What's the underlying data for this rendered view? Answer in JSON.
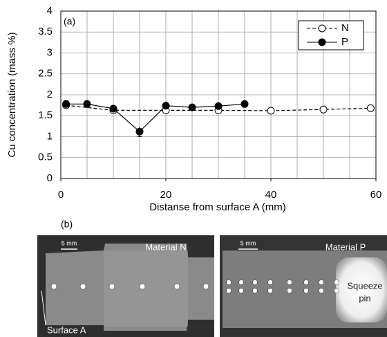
{
  "chart_data": {
    "type": "line",
    "panel_label": "(a)",
    "x_label": "Distanse from surface A (mm)",
    "y_label": "Cu concentration (mass %)",
    "xlim": [
      0,
      60
    ],
    "xticks": [
      0,
      20,
      40,
      60
    ],
    "x_grid": [
      5,
      10,
      15,
      20,
      25,
      30,
      35,
      40,
      45,
      50,
      55
    ],
    "ylim": [
      0,
      4
    ],
    "yticks": [
      0,
      0.5,
      1,
      1.5,
      2,
      2.5,
      3,
      3.5,
      4
    ],
    "grid": true,
    "legend": "upper right",
    "series": [
      {
        "name": "N",
        "color": "#000000",
        "marker": "open",
        "dashed": true,
        "x": [
          1,
          10,
          20,
          30,
          40,
          50,
          59
        ],
        "values": [
          1.75,
          1.63,
          1.63,
          1.63,
          1.62,
          1.65,
          1.68
        ]
      },
      {
        "name": "P",
        "color": "#000000",
        "marker": "filled",
        "dashed": false,
        "x": [
          1,
          5,
          10,
          15,
          20,
          25,
          30,
          35
        ],
        "values": [
          1.78,
          1.78,
          1.67,
          1.12,
          1.74,
          1.7,
          1.73,
          1.78
        ],
        "errors": [
          null,
          null,
          null,
          0.12,
          null,
          null,
          null,
          null
        ]
      }
    ]
  },
  "panel_b": {
    "panel_label": "(b)",
    "scale_left": "5 mm",
    "scale_right": "5 mm",
    "material_n": "Material N",
    "material_p": "Material P",
    "surface": "Surface A",
    "pin_line1": "Squeeze",
    "pin_line2": "pin"
  }
}
